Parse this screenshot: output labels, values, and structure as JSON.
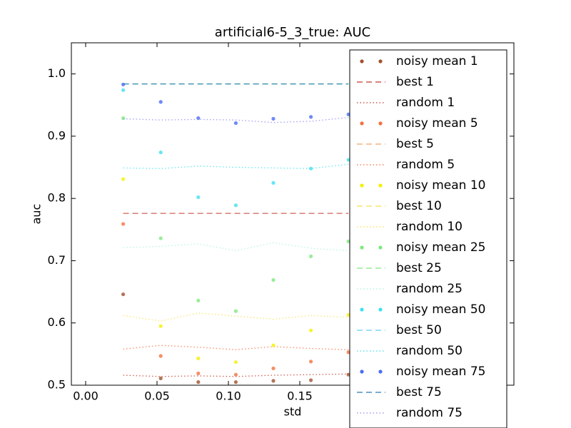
{
  "chart_data": {
    "type": "scatter",
    "title": "artificial6-5_3_true: AUC",
    "x_label": "std",
    "y_label": "auc",
    "xlim": [
      -0.01,
      0.3
    ],
    "ylim": [
      0.5,
      1.05
    ],
    "xticks": [
      {
        "value": 0,
        "label": "0.00"
      },
      {
        "value": 0.05,
        "label": "0.05"
      },
      {
        "value": 0.1,
        "label": "0.10"
      },
      {
        "value": 0.15,
        "label": "0.15"
      }
    ],
    "yticks": [
      0.5,
      0.6,
      0.7,
      0.8,
      0.9,
      {
        "value": 1,
        "label": "1.0"
      }
    ],
    "legend": "upper right",
    "x": [
      0.0263,
      0.0526,
      0.0789,
      0.1052,
      0.1315,
      0.1578,
      0.1841
    ],
    "series": [
      {
        "name": "noisy mean 1",
        "color": "#a0522d",
        "style": "points",
        "values": [
          0.646,
          0.511,
          0.505,
          0.505,
          0.507,
          0.508,
          0.517
        ]
      },
      {
        "name": "best 1",
        "color": "#c0392b",
        "style": "dashed",
        "values": [
          0.776,
          0.776,
          0.776,
          0.776,
          0.776,
          0.776,
          0.776
        ]
      },
      {
        "name": "random 1",
        "color": "#c0392b",
        "style": "dotted",
        "values": [
          0.516,
          0.514,
          0.515,
          0.514,
          0.516,
          0.517,
          0.518
        ]
      },
      {
        "name": "noisy mean 5",
        "color": "#f4703f",
        "style": "points",
        "values": [
          0.759,
          0.547,
          0.519,
          0.517,
          0.527,
          0.538,
          0.553
        ]
      },
      {
        "name": "best 5",
        "color": "#f4a460",
        "style": "dashed",
        "values": [
          0.984,
          0.984,
          0.984,
          0.984,
          0.984,
          0.984,
          0.984
        ]
      },
      {
        "name": "random 5",
        "color": "#f4703f",
        "style": "dotted",
        "values": [
          0.558,
          0.564,
          0.561,
          0.557,
          0.562,
          0.559,
          0.557
        ]
      },
      {
        "name": "noisy mean 10",
        "color": "#f5f000",
        "style": "points",
        "values": [
          0.831,
          0.595,
          0.543,
          0.537,
          0.564,
          0.588,
          0.613
        ]
      },
      {
        "name": "best 10",
        "color": "#f5e050",
        "style": "dashed",
        "values": [
          0.984,
          0.984,
          0.984,
          0.984,
          0.984,
          0.984,
          0.984
        ]
      },
      {
        "name": "random 10",
        "color": "#f5e050",
        "style": "dotted",
        "values": [
          0.612,
          0.603,
          0.616,
          0.611,
          0.606,
          0.612,
          0.609
        ]
      },
      {
        "name": "noisy mean 25",
        "color": "#7ee87e",
        "style": "points",
        "values": [
          0.929,
          0.736,
          0.636,
          0.619,
          0.669,
          0.707,
          0.731
        ]
      },
      {
        "name": "best 25",
        "color": "#7ee87e",
        "style": "dashed",
        "values": [
          0.984,
          0.984,
          0.984,
          0.984,
          0.984,
          0.984,
          0.984
        ]
      },
      {
        "name": "random 25",
        "color": "#a8f0e0",
        "style": "dotted",
        "values": [
          0.721,
          0.723,
          0.727,
          0.716,
          0.729,
          0.72,
          0.716
        ]
      },
      {
        "name": "noisy mean 50",
        "color": "#40e0f0",
        "style": "points",
        "values": [
          0.974,
          0.874,
          0.802,
          0.789,
          0.825,
          0.848,
          0.862
        ]
      },
      {
        "name": "best 50",
        "color": "#60d0f0",
        "style": "dashed",
        "values": [
          0.984,
          0.984,
          0.984,
          0.984,
          0.984,
          0.984,
          0.984
        ]
      },
      {
        "name": "random 50",
        "color": "#40e0f0",
        "style": "dotted",
        "values": [
          0.849,
          0.848,
          0.852,
          0.85,
          0.849,
          0.848,
          0.855
        ]
      },
      {
        "name": "noisy mean 75",
        "color": "#4a6cf7",
        "style": "points",
        "values": [
          0.983,
          0.955,
          0.929,
          0.921,
          0.928,
          0.931,
          0.935
        ]
      },
      {
        "name": "best 75",
        "color": "#2a7ab0",
        "style": "dashed",
        "values": [
          0.984,
          0.984,
          0.984,
          0.984,
          0.984,
          0.984,
          0.984
        ]
      },
      {
        "name": "random 75",
        "color": "#8a8af0",
        "style": "dotted",
        "values": [
          0.928,
          0.926,
          0.927,
          0.926,
          0.922,
          0.924,
          0.93
        ]
      }
    ]
  }
}
